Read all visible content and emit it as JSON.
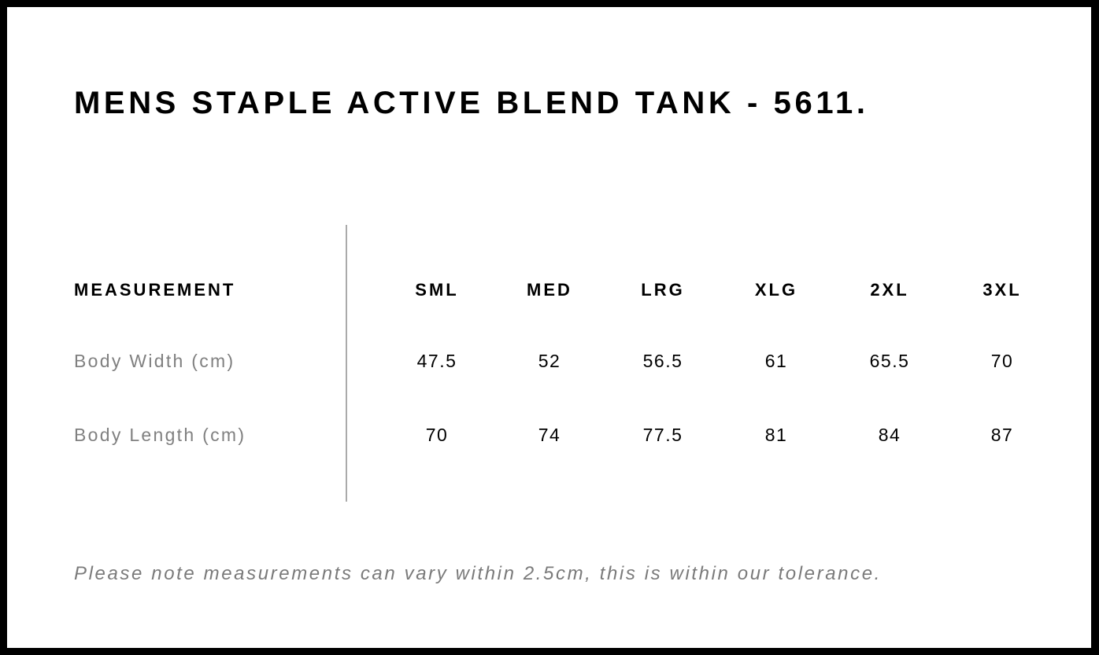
{
  "title": "MENS STAPLE ACTIVE BLEND TANK - 5611.",
  "table": {
    "header_label": "MEASUREMENT",
    "sizes": [
      "SML",
      "MED",
      "LRG",
      "XLG",
      "2XL",
      "3XL"
    ],
    "rows": [
      {
        "label": "Body Width (cm)",
        "values": [
          "47.5",
          "52",
          "56.5",
          "61",
          "65.5",
          "70"
        ]
      },
      {
        "label": "Body Length (cm)",
        "values": [
          "70",
          "74",
          "77.5",
          "81",
          "84",
          "87"
        ]
      }
    ]
  },
  "note": "Please note measurements can vary within 2.5cm, this is within our tolerance."
}
